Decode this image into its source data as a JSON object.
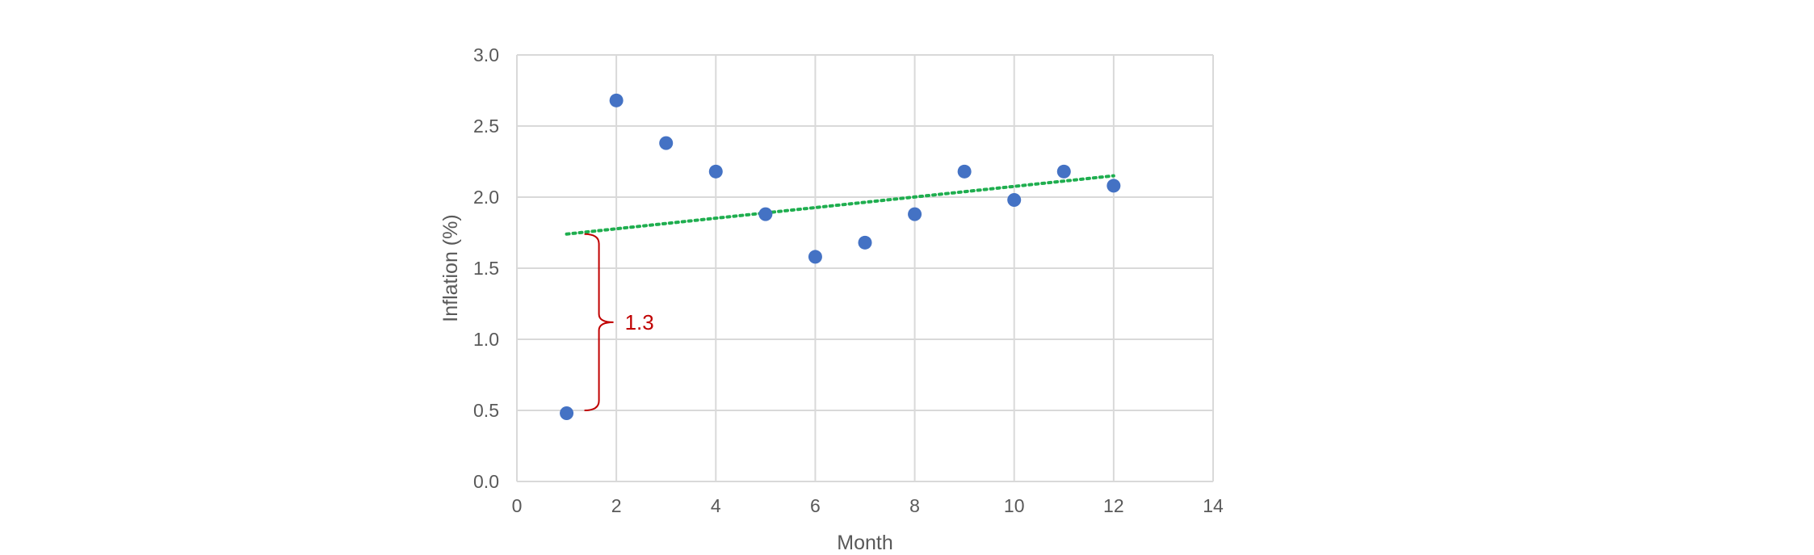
{
  "chart_data": {
    "type": "scatter",
    "xlabel": "Month",
    "ylabel": "Inflation (%)",
    "xlim": [
      0,
      14
    ],
    "ylim": [
      0,
      3.0
    ],
    "x_ticks": [
      "0",
      "2",
      "4",
      "6",
      "8",
      "10",
      "12",
      "14"
    ],
    "y_ticks": [
      "0.0",
      "0.5",
      "1.0",
      "1.5",
      "2.0",
      "2.5",
      "3.0"
    ],
    "grid": true,
    "legend": "none",
    "series": [
      {
        "points": [
          {
            "x": 1,
            "y": 0.48
          },
          {
            "x": 2,
            "y": 2.68
          },
          {
            "x": 3,
            "y": 2.38
          },
          {
            "x": 4,
            "y": 2.18
          },
          {
            "x": 5,
            "y": 1.88
          },
          {
            "x": 6,
            "y": 1.58
          },
          {
            "x": 7,
            "y": 1.68
          },
          {
            "x": 8,
            "y": 1.88
          },
          {
            "x": 9,
            "y": 2.18
          },
          {
            "x": 10,
            "y": 1.98
          },
          {
            "x": 11,
            "y": 2.18
          },
          {
            "x": 12,
            "y": 2.08
          }
        ],
        "color": "#4472c4"
      }
    ],
    "trendline": {
      "type": "linear",
      "style": "dotted",
      "color": "#1fae4f",
      "start": {
        "x": 1,
        "y": 1.74
      },
      "end": {
        "x": 12,
        "y": 2.15
      }
    },
    "annotation": {
      "text": "1.3",
      "type": "brace",
      "color": "#c00000",
      "x": 1.65,
      "y_from": 0.5,
      "y_to": 1.74
    },
    "colors": {
      "grid": "#d9d9d9",
      "axis_text": "#595959"
    }
  }
}
